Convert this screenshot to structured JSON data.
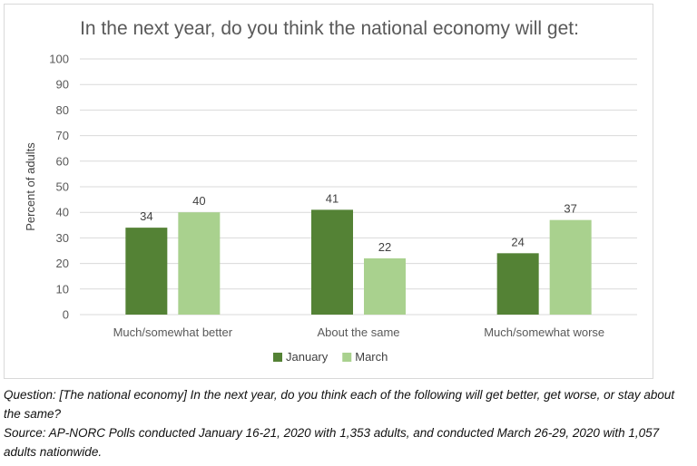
{
  "chart_data": {
    "type": "bar",
    "title": "In the next year, do you think the national economy will get:",
    "ylabel": "Percent of adults",
    "xlabel": "",
    "ylim": [
      0,
      100
    ],
    "yticks": [
      0,
      10,
      20,
      30,
      40,
      50,
      60,
      70,
      80,
      90,
      100
    ],
    "categories": [
      "Much/somewhat better",
      "About the same",
      "Much/somewhat worse"
    ],
    "series": [
      {
        "name": "January",
        "color": "#548235",
        "values": [
          34,
          41,
          24
        ]
      },
      {
        "name": "March",
        "color": "#a9d18e",
        "values": [
          40,
          22,
          37
        ]
      }
    ],
    "grid": true,
    "legend": "bottom"
  },
  "caption": {
    "question": "Question: [The national economy] In the next year, do you think each of the following will get better, get worse, or stay about the same?",
    "source": "Source: AP-NORC Polls conducted January 16-21, 2020 with 1,353 adults, and conducted March 26-29, 2020 with 1,057 adults nationwide."
  }
}
